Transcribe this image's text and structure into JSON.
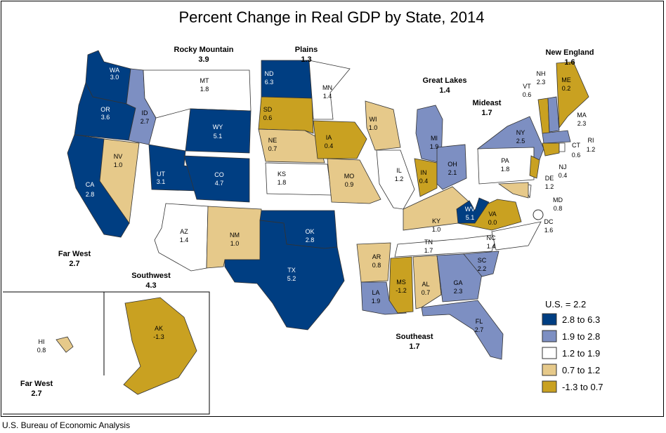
{
  "title": "Percent Change in Real GDP by State, 2014",
  "credit": "U.S. Bureau of Economic Analysis",
  "legend": {
    "us_label": "U.S. = 2.2",
    "classes": [
      {
        "label": "2.8 to 6.3",
        "color": "#003e82"
      },
      {
        "label": "1.9 to 2.8",
        "color": "#7d8fc2"
      },
      {
        "label": "1.2 to 1.9",
        "color": "#ffffff"
      },
      {
        "label": "0.7 to 1.2",
        "color": "#e6c98a"
      },
      {
        "label": "-1.3 to 0.7",
        "color": "#c9a121"
      }
    ]
  },
  "regions": [
    {
      "name": "Rocky Mountain",
      "value": "3.9"
    },
    {
      "name": "Plains",
      "value": "1.3"
    },
    {
      "name": "New England",
      "value": "1.6"
    },
    {
      "name": "Great Lakes",
      "value": "1.4"
    },
    {
      "name": "Mideast",
      "value": "1.7"
    },
    {
      "name": "Far West",
      "value": "2.7"
    },
    {
      "name": "Southwest",
      "value": "4.3"
    },
    {
      "name": "Southeast",
      "value": "1.7"
    },
    {
      "name": "Far West",
      "value": "2.7"
    }
  ],
  "states": [
    {
      "abbr": "WA",
      "value": "3.0",
      "cls": 0
    },
    {
      "abbr": "OR",
      "value": "3.6",
      "cls": 0
    },
    {
      "abbr": "CA",
      "value": "2.8",
      "cls": 0
    },
    {
      "abbr": "NV",
      "value": "1.0",
      "cls": 3
    },
    {
      "abbr": "ID",
      "value": "2.7",
      "cls": 1
    },
    {
      "abbr": "MT",
      "value": "1.8",
      "cls": 2
    },
    {
      "abbr": "WY",
      "value": "5.1",
      "cls": 0
    },
    {
      "abbr": "UT",
      "value": "3.1",
      "cls": 0
    },
    {
      "abbr": "CO",
      "value": "4.7",
      "cls": 0
    },
    {
      "abbr": "AZ",
      "value": "1.4",
      "cls": 2
    },
    {
      "abbr": "NM",
      "value": "1.0",
      "cls": 3
    },
    {
      "abbr": "ND",
      "value": "6.3",
      "cls": 0
    },
    {
      "abbr": "SD",
      "value": "0.6",
      "cls": 4
    },
    {
      "abbr": "NE",
      "value": "0.7",
      "cls": 3
    },
    {
      "abbr": "KS",
      "value": "1.8",
      "cls": 2
    },
    {
      "abbr": "OK",
      "value": "2.8",
      "cls": 0
    },
    {
      "abbr": "TX",
      "value": "5.2",
      "cls": 0
    },
    {
      "abbr": "MN",
      "value": "1.4",
      "cls": 2
    },
    {
      "abbr": "IA",
      "value": "0.4",
      "cls": 4
    },
    {
      "abbr": "MO",
      "value": "0.9",
      "cls": 3
    },
    {
      "abbr": "AR",
      "value": "0.8",
      "cls": 3
    },
    {
      "abbr": "LA",
      "value": "1.9",
      "cls": 1
    },
    {
      "abbr": "WI",
      "value": "1.0",
      "cls": 3
    },
    {
      "abbr": "IL",
      "value": "1.2",
      "cls": 2
    },
    {
      "abbr": "MI",
      "value": "1.9",
      "cls": 1
    },
    {
      "abbr": "IN",
      "value": "0.4",
      "cls": 4
    },
    {
      "abbr": "OH",
      "value": "2.1",
      "cls": 1
    },
    {
      "abbr": "KY",
      "value": "1.0",
      "cls": 3
    },
    {
      "abbr": "TN",
      "value": "1.7",
      "cls": 2
    },
    {
      "abbr": "MS",
      "value": "-1.2",
      "cls": 4
    },
    {
      "abbr": "AL",
      "value": "0.7",
      "cls": 3
    },
    {
      "abbr": "GA",
      "value": "2.3",
      "cls": 1
    },
    {
      "abbr": "FL",
      "value": "2.7",
      "cls": 1
    },
    {
      "abbr": "SC",
      "value": "2.2",
      "cls": 1
    },
    {
      "abbr": "NC",
      "value": "1.4",
      "cls": 2
    },
    {
      "abbr": "VA",
      "value": "0.0",
      "cls": 4
    },
    {
      "abbr": "WV",
      "value": "5.1",
      "cls": 0
    },
    {
      "abbr": "PA",
      "value": "1.8",
      "cls": 2
    },
    {
      "abbr": "NY",
      "value": "2.5",
      "cls": 1
    },
    {
      "abbr": "NJ",
      "value": "0.4",
      "cls": 4
    },
    {
      "abbr": "DE",
      "value": "1.2",
      "cls": 2
    },
    {
      "abbr": "MD",
      "value": "0.8",
      "cls": 3
    },
    {
      "abbr": "DC",
      "value": "1.6",
      "cls": 2
    },
    {
      "abbr": "VT",
      "value": "0.6",
      "cls": 4
    },
    {
      "abbr": "NH",
      "value": "2.3",
      "cls": 1
    },
    {
      "abbr": "ME",
      "value": "0.2",
      "cls": 4
    },
    {
      "abbr": "MA",
      "value": "2.3",
      "cls": 1
    },
    {
      "abbr": "CT",
      "value": "0.6",
      "cls": 4
    },
    {
      "abbr": "RI",
      "value": "1.2",
      "cls": 2
    },
    {
      "abbr": "AK",
      "value": "-1.3",
      "cls": 4
    },
    {
      "abbr": "HI",
      "value": "0.8",
      "cls": 3
    }
  ]
}
